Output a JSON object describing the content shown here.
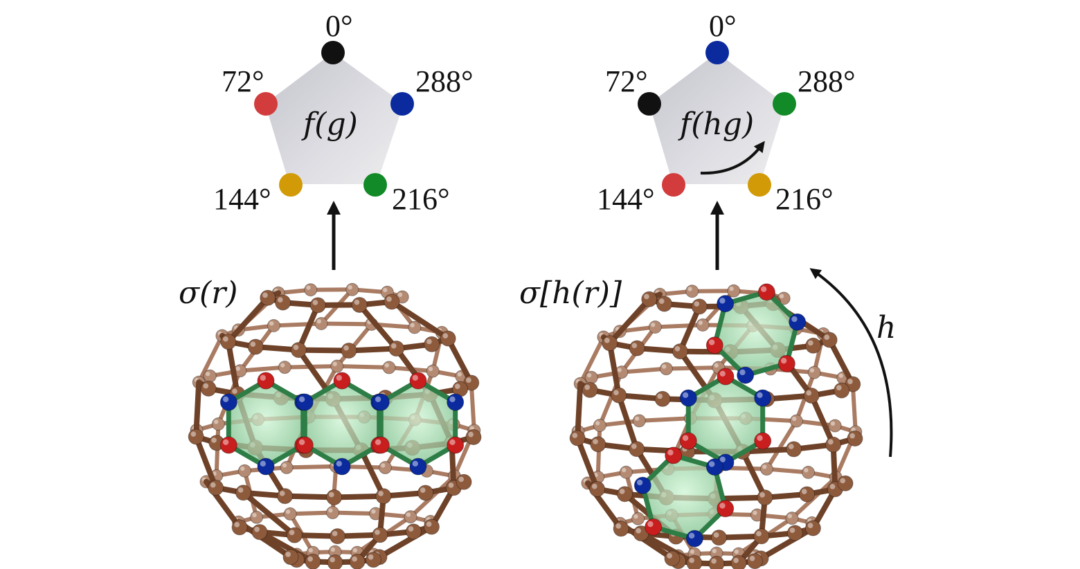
{
  "colors": {
    "black": "#111111",
    "red": "#d23c3c",
    "blue": "#0a2a9e",
    "green": "#128a28",
    "gold": "#d19a06",
    "carbon": "#8e5a3c",
    "bond": "#6e4228",
    "green_bond": "#2e7d46",
    "face": "#3f9d5f"
  },
  "panels": [
    {
      "label": "f(g)",
      "molecule_label": "σ(r)",
      "vertices": [
        {
          "angle": "0°",
          "color": "black"
        },
        {
          "angle": "288°",
          "color": "blue"
        },
        {
          "angle": "216°",
          "color": "green"
        },
        {
          "angle": "144°",
          "color": "gold"
        },
        {
          "angle": "72°",
          "color": "red"
        }
      ]
    },
    {
      "label": "f(hg)",
      "molecule_label": "σ[h(r)]",
      "vertices": [
        {
          "angle": "0°",
          "color": "blue"
        },
        {
          "angle": "288°",
          "color": "green"
        },
        {
          "angle": "216°",
          "color": "gold"
        },
        {
          "angle": "144°",
          "color": "red"
        },
        {
          "angle": "72°",
          "color": "black"
        }
      ]
    }
  ],
  "rotation_label": "h"
}
